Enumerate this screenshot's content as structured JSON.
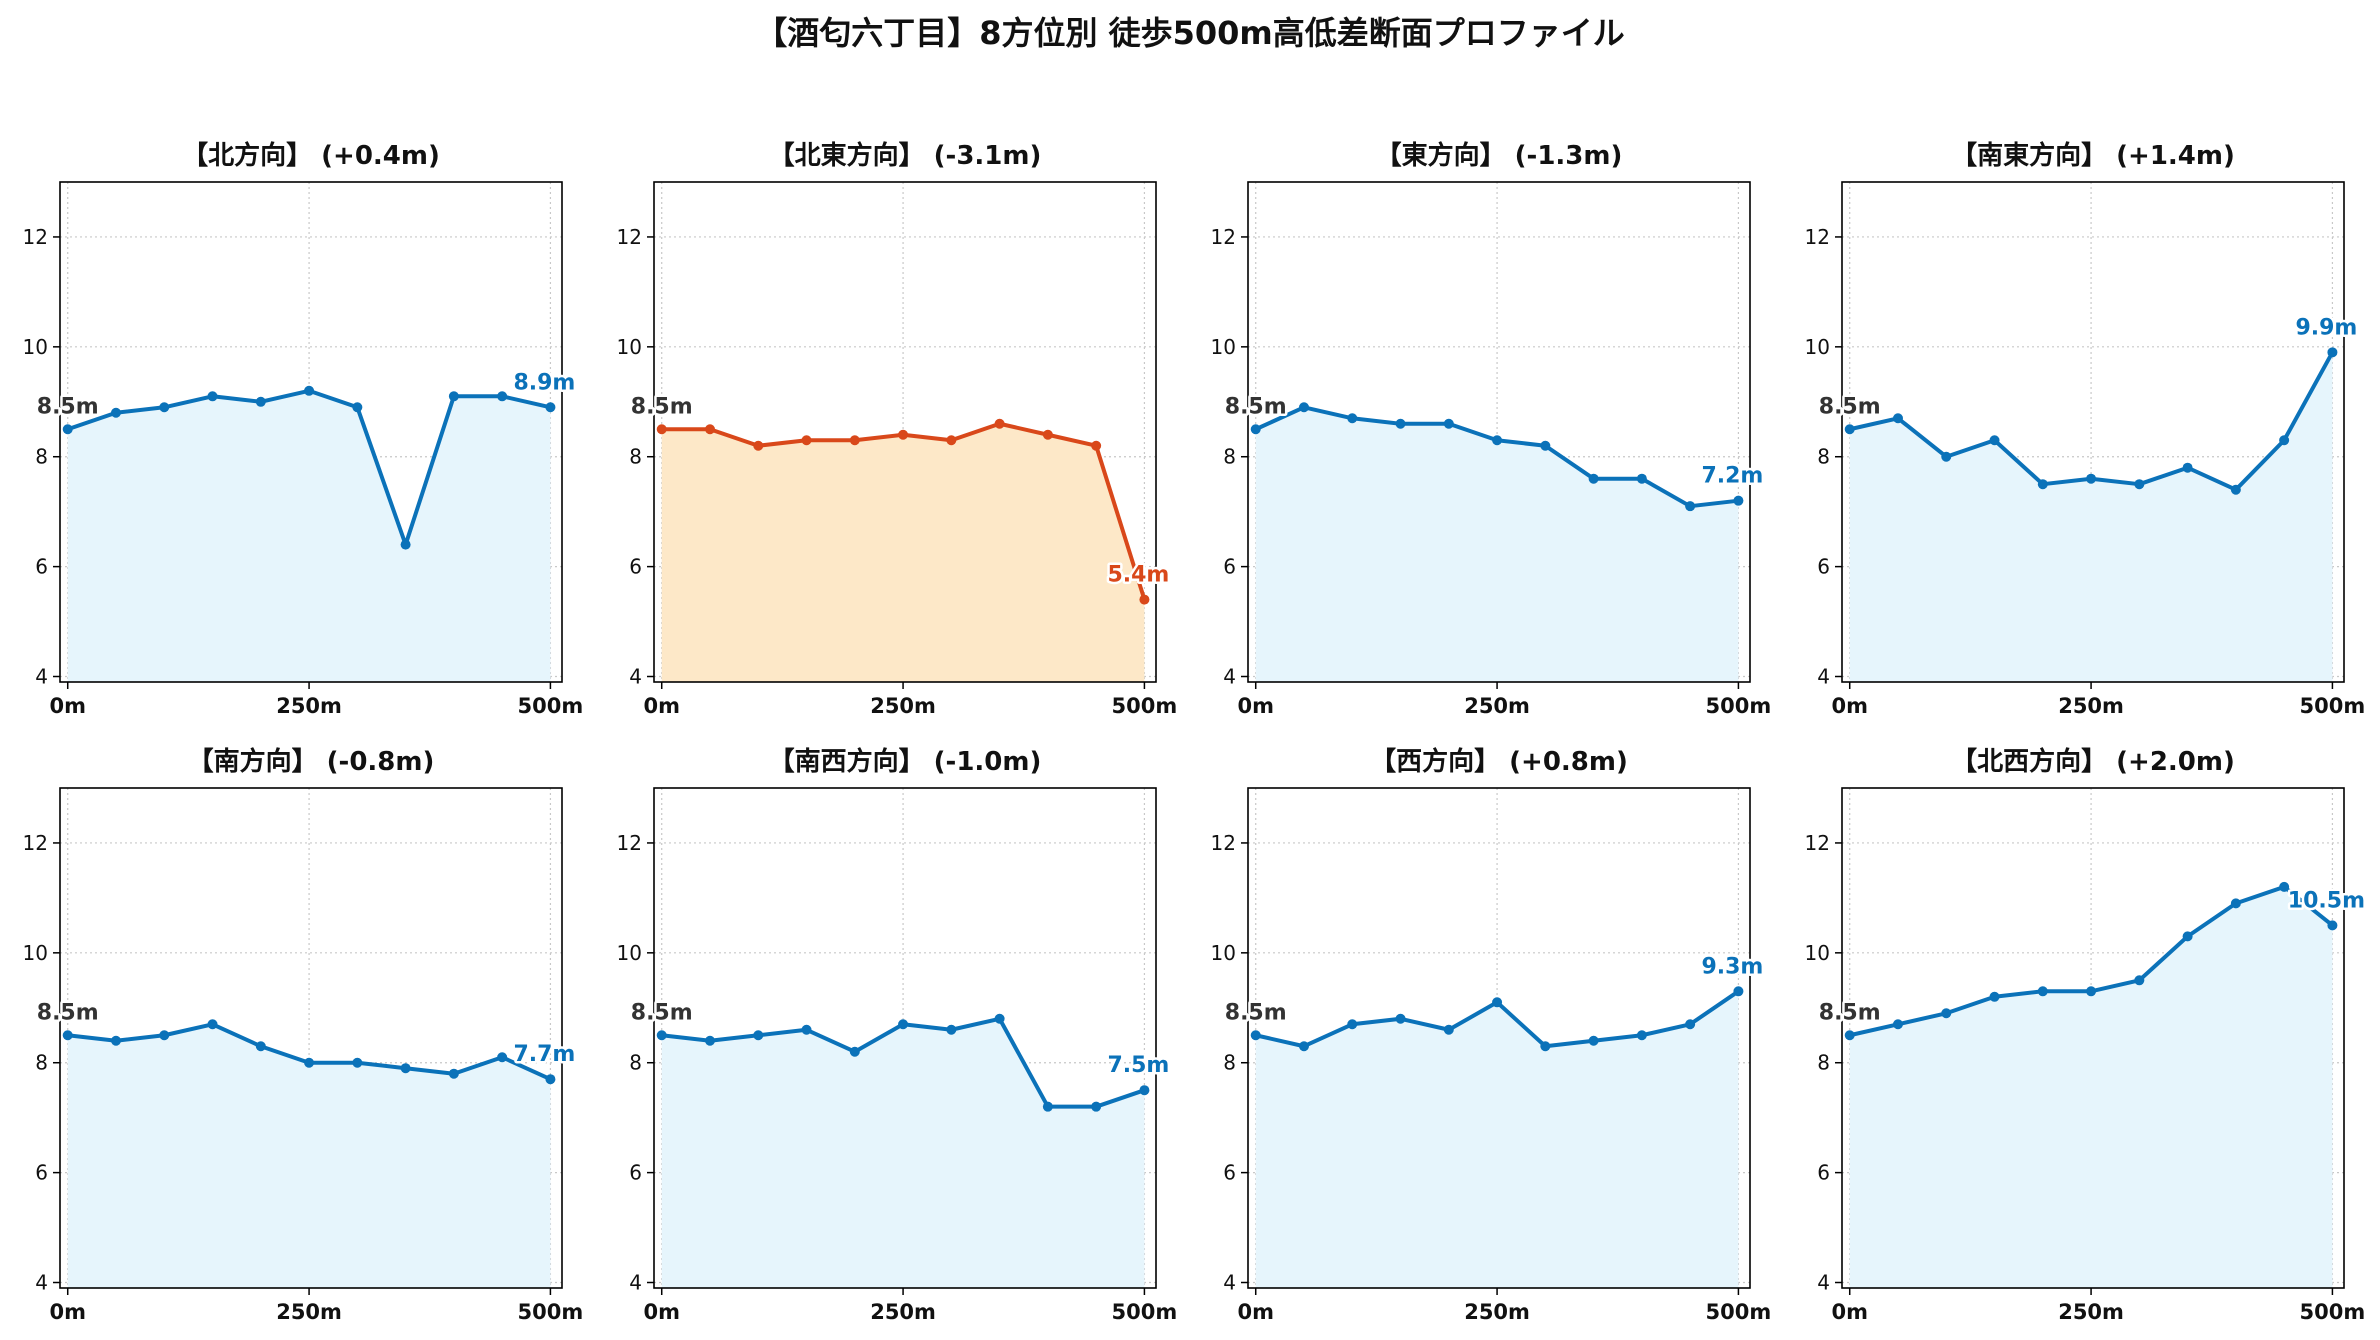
{
  "title": "【酒匂六丁目】8方位別 徒歩500m高低差断面プロファイル",
  "colors": {
    "normal_line": "#0b72b9",
    "normal_fill": "#e6f5fc",
    "highlight_line": "#d9481a",
    "highlight_fill": "#fde8c8",
    "start_label": "#333333",
    "grid": "#c8c8c8"
  },
  "chart_data": [
    {
      "type": "area",
      "title": "【北方向】 (+0.4m)",
      "highlight": false,
      "x": [
        0,
        50,
        100,
        150,
        200,
        250,
        300,
        350,
        400,
        450,
        500
      ],
      "y": [
        8.5,
        8.8,
        8.9,
        9.1,
        9.0,
        9.2,
        8.9,
        6.4,
        9.1,
        9.1,
        8.9
      ],
      "start_label": "8.5m",
      "end_label": "8.9m",
      "xticks": [
        "0m",
        "250m",
        "500m"
      ],
      "yticks": [
        "4",
        "6",
        "8",
        "10",
        "12"
      ],
      "ylim": [
        3.9,
        13.0
      ],
      "xlim": [
        -8,
        512
      ],
      "grid": true
    },
    {
      "type": "area",
      "title": "【北東方向】 (-3.1m)",
      "highlight": true,
      "x": [
        0,
        50,
        100,
        150,
        200,
        250,
        300,
        350,
        400,
        450,
        500
      ],
      "y": [
        8.5,
        8.5,
        8.2,
        8.3,
        8.3,
        8.4,
        8.3,
        8.6,
        8.4,
        8.2,
        5.4
      ],
      "start_label": "8.5m",
      "end_label": "5.4m",
      "xticks": [
        "0m",
        "250m",
        "500m"
      ],
      "yticks": [
        "4",
        "6",
        "8",
        "10",
        "12"
      ],
      "ylim": [
        3.9,
        13.0
      ],
      "xlim": [
        -8,
        512
      ],
      "grid": true
    },
    {
      "type": "area",
      "title": "【東方向】 (-1.3m)",
      "highlight": false,
      "x": [
        0,
        50,
        100,
        150,
        200,
        250,
        300,
        350,
        400,
        450,
        500
      ],
      "y": [
        8.5,
        8.9,
        8.7,
        8.6,
        8.6,
        8.3,
        8.2,
        7.6,
        7.6,
        7.1,
        7.2
      ],
      "start_label": "8.5m",
      "end_label": "7.2m",
      "xticks": [
        "0m",
        "250m",
        "500m"
      ],
      "yticks": [
        "4",
        "6",
        "8",
        "10",
        "12"
      ],
      "ylim": [
        3.9,
        13.0
      ],
      "xlim": [
        -8,
        512
      ],
      "grid": true
    },
    {
      "type": "area",
      "title": "【南東方向】 (+1.4m)",
      "highlight": false,
      "x": [
        0,
        50,
        100,
        150,
        200,
        250,
        300,
        350,
        400,
        450,
        500
      ],
      "y": [
        8.5,
        8.7,
        8.0,
        8.3,
        7.5,
        7.6,
        7.5,
        7.8,
        7.4,
        8.3,
        9.9
      ],
      "start_label": "8.5m",
      "end_label": "9.9m",
      "xticks": [
        "0m",
        "250m",
        "500m"
      ],
      "yticks": [
        "4",
        "6",
        "8",
        "10",
        "12"
      ],
      "ylim": [
        3.9,
        13.0
      ],
      "xlim": [
        -8,
        512
      ],
      "grid": true
    },
    {
      "type": "area",
      "title": "【南方向】 (-0.8m)",
      "highlight": false,
      "x": [
        0,
        50,
        100,
        150,
        200,
        250,
        300,
        350,
        400,
        450,
        500
      ],
      "y": [
        8.5,
        8.4,
        8.5,
        8.7,
        8.3,
        8.0,
        8.0,
        7.9,
        7.8,
        8.1,
        7.7
      ],
      "start_label": "8.5m",
      "end_label": "7.7m",
      "xticks": [
        "0m",
        "250m",
        "500m"
      ],
      "yticks": [
        "4",
        "6",
        "8",
        "10",
        "12"
      ],
      "ylim": [
        3.9,
        13.0
      ],
      "xlim": [
        -8,
        512
      ],
      "grid": true
    },
    {
      "type": "area",
      "title": "【南西方向】 (-1.0m)",
      "highlight": false,
      "x": [
        0,
        50,
        100,
        150,
        200,
        250,
        300,
        350,
        400,
        450,
        500
      ],
      "y": [
        8.5,
        8.4,
        8.5,
        8.6,
        8.2,
        8.7,
        8.6,
        8.8,
        7.2,
        7.2,
        7.5
      ],
      "start_label": "8.5m",
      "end_label": "7.5m",
      "xticks": [
        "0m",
        "250m",
        "500m"
      ],
      "yticks": [
        "4",
        "6",
        "8",
        "10",
        "12"
      ],
      "ylim": [
        3.9,
        13.0
      ],
      "xlim": [
        -8,
        512
      ],
      "grid": true
    },
    {
      "type": "area",
      "title": "【西方向】 (+0.8m)",
      "highlight": false,
      "x": [
        0,
        50,
        100,
        150,
        200,
        250,
        300,
        350,
        400,
        450,
        500
      ],
      "y": [
        8.5,
        8.3,
        8.7,
        8.8,
        8.6,
        9.1,
        8.3,
        8.4,
        8.5,
        8.7,
        9.3
      ],
      "start_label": "8.5m",
      "end_label": "9.3m",
      "xticks": [
        "0m",
        "250m",
        "500m"
      ],
      "yticks": [
        "4",
        "6",
        "8",
        "10",
        "12"
      ],
      "ylim": [
        3.9,
        13.0
      ],
      "xlim": [
        -8,
        512
      ],
      "grid": true
    },
    {
      "type": "area",
      "title": "【北西方向】 (+2.0m)",
      "highlight": false,
      "x": [
        0,
        50,
        100,
        150,
        200,
        250,
        300,
        350,
        400,
        450,
        500
      ],
      "y": [
        8.5,
        8.7,
        8.9,
        9.2,
        9.3,
        9.3,
        9.5,
        10.3,
        10.9,
        11.2,
        10.5
      ],
      "start_label": "8.5m",
      "end_label": "10.5m",
      "xticks": [
        "0m",
        "250m",
        "500m"
      ],
      "yticks": [
        "4",
        "6",
        "8",
        "10",
        "12"
      ],
      "ylim": [
        3.9,
        13.0
      ],
      "xlim": [
        -8,
        512
      ],
      "grid": true
    }
  ]
}
